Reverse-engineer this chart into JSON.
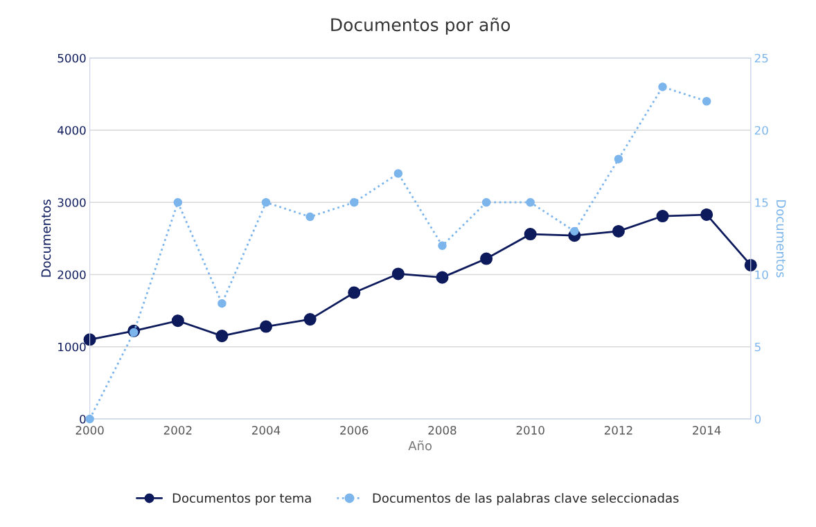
{
  "chart_data": {
    "type": "line",
    "title": "Documentos por año",
    "xlabel": "Año",
    "ylabel": "Documentos",
    "y2label": "Documentos",
    "x": [
      2000,
      2001,
      2002,
      2003,
      2004,
      2005,
      2006,
      2007,
      2008,
      2009,
      2010,
      2011,
      2012,
      2013,
      2014,
      2015
    ],
    "series": [
      {
        "name": "Documentos por tema",
        "color": "#0d1a5c",
        "line_style": "solid",
        "marker": "circle",
        "values": [
          1100,
          1220,
          1360,
          1150,
          1280,
          1380,
          1750,
          2010,
          1960,
          2220,
          2560,
          2540,
          2600,
          2810,
          2830,
          2130
        ]
      },
      {
        "name": "Documentos de las palabras clave seleccionadas",
        "color": "#7cb5ec",
        "line_style": "dotted",
        "marker": "circle",
        "axis": "y2",
        "values": [
          0,
          6,
          15,
          8,
          15,
          14,
          15,
          17,
          12,
          15,
          15,
          13,
          18,
          23,
          22,
          null
        ]
      }
    ],
    "xlim": [
      2000,
      2015
    ],
    "xticks": [
      2000,
      2002,
      2004,
      2006,
      2008,
      2010,
      2012,
      2014
    ],
    "ylim": [
      0,
      5000
    ],
    "yticks": [
      0,
      1000,
      2000,
      3000,
      4000,
      5000
    ],
    "y2lim": [
      0,
      25
    ],
    "y2ticks": [
      0,
      5,
      10,
      15,
      20,
      25
    ],
    "grid": "y",
    "legend": "bottom"
  }
}
